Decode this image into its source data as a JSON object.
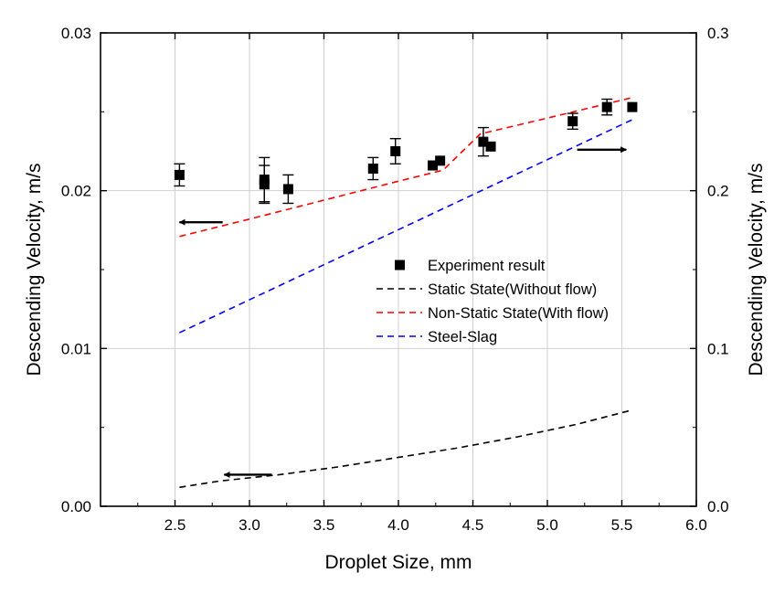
{
  "chart_data": {
    "type": "scatter",
    "xlabel": "Droplet Size, mm",
    "ylabel_left": "Descending Velocity, m/s",
    "ylabel_right": "Descending Velocity, m/s",
    "xlim": [
      2.0,
      6.0
    ],
    "ylim_left": [
      0.0,
      0.03
    ],
    "ylim_right": [
      0.0,
      0.3
    ],
    "x_ticks": [
      "2.5",
      "3.0",
      "3.5",
      "4.0",
      "4.5",
      "5.0",
      "5.5",
      "6.0"
    ],
    "y_ticks_left": [
      "0.00",
      "0.01",
      "0.02",
      "0.03"
    ],
    "y_ticks_right": [
      "0.0",
      "0.1",
      "0.2",
      "0.3"
    ],
    "grid": true,
    "legend_position": "center-right",
    "series": [
      {
        "name": "Experiment result",
        "kind": "points",
        "axis": "left",
        "color": "#000000",
        "points": [
          {
            "x": 2.53,
            "y": 0.021,
            "err": 0.0007
          },
          {
            "x": 3.1,
            "y": 0.0207,
            "err": 0.0014
          },
          {
            "x": 3.1,
            "y": 0.0204,
            "err": 0.0012
          },
          {
            "x": 3.26,
            "y": 0.0201,
            "err": 0.0009
          },
          {
            "x": 3.83,
            "y": 0.0214,
            "err": 0.0007
          },
          {
            "x": 3.98,
            "y": 0.0225,
            "err": 0.0008
          },
          {
            "x": 4.23,
            "y": 0.0216,
            "err": 0.0
          },
          {
            "x": 4.28,
            "y": 0.0219,
            "err": 0.0
          },
          {
            "x": 4.57,
            "y": 0.0231,
            "err": 0.0009
          },
          {
            "x": 4.62,
            "y": 0.0228,
            "err": 0.0
          },
          {
            "x": 5.17,
            "y": 0.0244,
            "err": 0.0005
          },
          {
            "x": 5.4,
            "y": 0.0253,
            "err": 0.0005
          },
          {
            "x": 5.57,
            "y": 0.0253,
            "err": 0.0
          }
        ]
      },
      {
        "name": "Static State(Without flow)",
        "kind": "dashed-line",
        "axis": "left",
        "color": "#000000",
        "x": [
          2.53,
          2.8,
          3.2,
          3.6,
          4.0,
          4.4,
          4.8,
          5.2,
          5.57
        ],
        "y": [
          0.0012,
          0.0016,
          0.002,
          0.0025,
          0.0031,
          0.0037,
          0.0044,
          0.0052,
          0.0061
        ]
      },
      {
        "name": "Non-Static State(With flow)",
        "kind": "dashed-line",
        "axis": "left",
        "color": "#ff0000",
        "x": [
          2.53,
          3.0,
          3.5,
          4.0,
          4.3,
          4.55,
          5.0,
          5.57
        ],
        "y": [
          0.0171,
          0.0182,
          0.0194,
          0.0206,
          0.0213,
          0.0236,
          0.0246,
          0.0259
        ]
      },
      {
        "name": "Steel-Slag",
        "kind": "dashed-line",
        "axis": "right",
        "color": "#0000ff",
        "x": [
          2.53,
          5.57
        ],
        "y": [
          0.11,
          0.245
        ]
      }
    ],
    "annotations": [
      {
        "type": "arrow",
        "direction": "left",
        "x_start": 2.82,
        "x_end": 2.53,
        "y": 0.018,
        "axis": "left",
        "meaning": "points to left axis"
      },
      {
        "type": "arrow",
        "direction": "right",
        "x_start": 5.2,
        "x_end": 5.53,
        "y": 0.0226,
        "axis": "left",
        "meaning": "points to right axis"
      },
      {
        "type": "arrow",
        "direction": "left",
        "x_start": 3.15,
        "x_end": 2.83,
        "y": 0.002,
        "axis": "left",
        "meaning": "points to left axis"
      }
    ]
  }
}
